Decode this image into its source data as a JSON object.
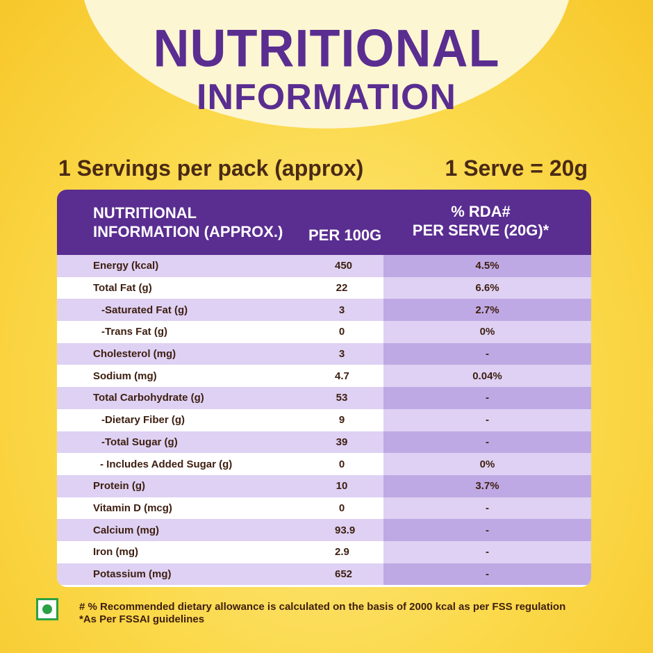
{
  "title": {
    "line1": "NUTRITIONAL",
    "line2": "INFORMATION"
  },
  "servings": {
    "per_pack": "1 Servings per pack (approx)",
    "serve": "1 Serve = 20g"
  },
  "table": {
    "headers": {
      "col1_line1": "NUTRITIONAL",
      "col1_line2": "INFORMATION (APPROX.)",
      "col2": "PER 100G",
      "col3_line1": "% RDA#",
      "col3_line2": "PER SERVE (20G)*"
    },
    "rows": [
      {
        "label": "Energy (kcal)",
        "per100g": "450",
        "rda": "4.5%",
        "indent": 0
      },
      {
        "label": "Total Fat (g)",
        "per100g": "22",
        "rda": "6.6%",
        "indent": 0
      },
      {
        "label": "-Saturated Fat (g)",
        "per100g": "3",
        "rda": "2.7%",
        "indent": 1
      },
      {
        "label": "-Trans Fat (g)",
        "per100g": "0",
        "rda": "0%",
        "indent": 1
      },
      {
        "label": "Cholesterol (mg)",
        "per100g": "3",
        "rda": "-",
        "indent": 0
      },
      {
        "label": "Sodium (mg)",
        "per100g": "4.7",
        "rda": "0.04%",
        "indent": 0
      },
      {
        "label": "Total Carbohydrate (g)",
        "per100g": "53",
        "rda": "-",
        "indent": 0
      },
      {
        "label": "-Dietary Fiber (g)",
        "per100g": "9",
        "rda": "-",
        "indent": 1
      },
      {
        "label": "-Total Sugar (g)",
        "per100g": "39",
        "rda": "-",
        "indent": 1
      },
      {
        "label": "- Includes Added Sugar (g)",
        "per100g": "0",
        "rda": "0%",
        "indent": 2
      },
      {
        "label": "Protein (g)",
        "per100g": "10",
        "rda": "3.7%",
        "indent": 0
      },
      {
        "label": "Vitamin D (mcg)",
        "per100g": "0",
        "rda": "-",
        "indent": 0
      },
      {
        "label": "Calcium (mg)",
        "per100g": "93.9",
        "rda": "-",
        "indent": 0
      },
      {
        "label": "Iron (mg)",
        "per100g": "2.9",
        "rda": "-",
        "indent": 0
      },
      {
        "label": "Potassium (mg)",
        "per100g": "652",
        "rda": "-",
        "indent": 0
      }
    ]
  },
  "footnotes": {
    "line1": "# % Recommended dietary allowance  is calculated on the basis of 2000 kcal as per FSS regulation",
    "line2": "*As Per FSSAI guidelines"
  },
  "icons": {
    "veg_mark": "veg-symbol-icon"
  },
  "colors": {
    "purple": "#5a2d91",
    "yellow": "#fbd94a",
    "text_brown": "#3d1e10",
    "veg_green": "#2aa144"
  }
}
